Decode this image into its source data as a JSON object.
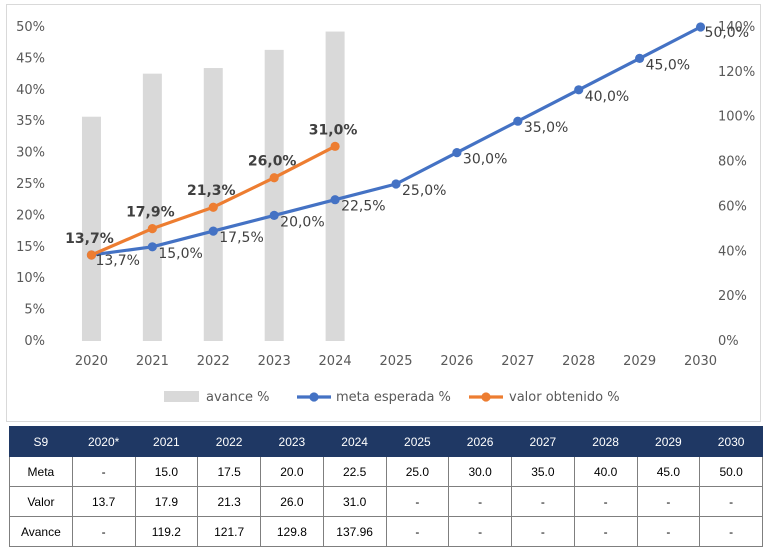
{
  "chart_data": {
    "type": "bar+line",
    "categories": [
      "2020",
      "2021",
      "2022",
      "2023",
      "2024",
      "2025",
      "2026",
      "2027",
      "2028",
      "2029",
      "2030"
    ],
    "y_left": {
      "ylim": [
        0,
        50
      ],
      "ticks": [
        "0%",
        "5%",
        "10%",
        "15%",
        "20%",
        "25%",
        "30%",
        "35%",
        "40%",
        "45%",
        "50%"
      ]
    },
    "y_right": {
      "ylim": [
        0,
        140
      ],
      "ticks": [
        "0%",
        "20%",
        "40%",
        "60%",
        "80%",
        "100%",
        "120%",
        "140%"
      ]
    },
    "grid": false,
    "legend_position": "bottom",
    "series": [
      {
        "name": "avance %",
        "type": "bar",
        "axis": "right",
        "color": "#d9d9d9",
        "values": [
          100,
          119.2,
          121.7,
          129.8,
          137.96,
          null,
          null,
          null,
          null,
          null,
          null
        ]
      },
      {
        "name": "meta esperada %",
        "type": "line",
        "axis": "left",
        "color": "#4472c4",
        "values": [
          13.7,
          15.0,
          17.5,
          20.0,
          22.5,
          25.0,
          30.0,
          35.0,
          40.0,
          45.0,
          50.0
        ],
        "labels": [
          "13,7%",
          "15,0%",
          "17,5%",
          "20,0%",
          "22,5%",
          "25,0%",
          "30,0%",
          "35,0%",
          "40,0%",
          "45,0%",
          "50,0%"
        ]
      },
      {
        "name": "valor obtenido %",
        "type": "line",
        "axis": "left",
        "color": "#ed7d31",
        "values": [
          13.7,
          17.9,
          21.3,
          26.0,
          31.0,
          null,
          null,
          null,
          null,
          null,
          null
        ],
        "labels": [
          "13,7%",
          "17,9%",
          "21,3%",
          "26,0%",
          "31,0%"
        ]
      }
    ]
  },
  "table": {
    "header": [
      "S9",
      "2020*",
      "2021",
      "2022",
      "2023",
      "2024",
      "2025",
      "2026",
      "2027",
      "2028",
      "2029",
      "2030"
    ],
    "header_color": "#1f3864",
    "rows": [
      [
        "Meta",
        "-",
        "15.0",
        "17.5",
        "20.0",
        "22.5",
        "25.0",
        "30.0",
        "35.0",
        "40.0",
        "45.0",
        "50.0"
      ],
      [
        "Valor",
        "13.7",
        "17.9",
        "21.3",
        "26.0",
        "31.0",
        "-",
        "-",
        "-",
        "-",
        "-",
        "-"
      ],
      [
        "Avance",
        "-",
        "119.2",
        "121.7",
        "129.8",
        "137.96",
        "-",
        "-",
        "-",
        "-",
        "-",
        "-"
      ]
    ]
  }
}
